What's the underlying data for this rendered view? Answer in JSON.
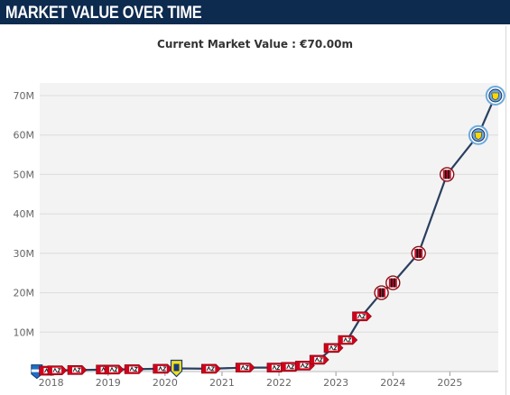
{
  "header": {
    "title": "MARKET VALUE OVER TIME"
  },
  "chart_data": {
    "type": "line",
    "title": "",
    "subtitle": "Current Market Value : €70.00m",
    "xlabel": "",
    "ylabel": "",
    "x_unit": "year",
    "y_unit": "€m",
    "xlim": [
      2017.8,
      2025.85
    ],
    "ylim": [
      0,
      70
    ],
    "x_ticks": [
      2018,
      2019,
      2020,
      2021,
      2022,
      2023,
      2024,
      2025
    ],
    "x_tick_labels": [
      "2018",
      "2019",
      "2020",
      "2021",
      "2022",
      "2023",
      "2024",
      "2025"
    ],
    "y_ticks": [
      10,
      20,
      30,
      40,
      50,
      60,
      70
    ],
    "y_tick_labels": [
      "10M",
      "20M",
      "30M",
      "40M",
      "50M",
      "60M",
      "70M"
    ],
    "grid": true,
    "legend": "none",
    "colors": {
      "line": "#2a3f5f",
      "plot_bg": "#f3f3f3",
      "grid": "#dcdcdc",
      "header_bg": "#0d2a4f"
    },
    "series": [
      {
        "values_unit": "€m",
        "points": [
          {
            "x": 2017.75,
            "y": 0.1,
            "club": "pec-zwolle"
          },
          {
            "x": 2017.95,
            "y": 0.2,
            "club": "az-alkmaar"
          },
          {
            "x": 2018.1,
            "y": 0.3,
            "club": "az-alkmaar"
          },
          {
            "x": 2018.45,
            "y": 0.4,
            "club": "az-alkmaar"
          },
          {
            "x": 2018.95,
            "y": 0.5,
            "club": "az-alkmaar"
          },
          {
            "x": 2019.1,
            "y": 0.5,
            "club": "az-alkmaar"
          },
          {
            "x": 2019.45,
            "y": 0.6,
            "club": "az-alkmaar"
          },
          {
            "x": 2019.95,
            "y": 0.7,
            "club": "az-alkmaar"
          },
          {
            "x": 2020.2,
            "y": 0.8,
            "club": "rkc-waalwijk"
          },
          {
            "x": 2020.8,
            "y": 0.7,
            "club": "az-alkmaar"
          },
          {
            "x": 2021.4,
            "y": 1.0,
            "club": "az-alkmaar"
          },
          {
            "x": 2021.95,
            "y": 1.0,
            "club": "az-alkmaar"
          },
          {
            "x": 2022.2,
            "y": 1.2,
            "club": "az-alkmaar"
          },
          {
            "x": 2022.45,
            "y": 1.5,
            "club": "az-alkmaar"
          },
          {
            "x": 2022.7,
            "y": 3.0,
            "club": "az-alkmaar"
          },
          {
            "x": 2022.95,
            "y": 6.0,
            "club": "az-alkmaar"
          },
          {
            "x": 2023.2,
            "y": 8.0,
            "club": "az-alkmaar"
          },
          {
            "x": 2023.45,
            "y": 14.0,
            "club": "az-alkmaar"
          },
          {
            "x": 2023.8,
            "y": 20.0,
            "club": "ac-milan"
          },
          {
            "x": 2024.0,
            "y": 22.5,
            "club": "ac-milan"
          },
          {
            "x": 2024.45,
            "y": 30.0,
            "club": "ac-milan"
          },
          {
            "x": 2024.95,
            "y": 50.0,
            "club": "ac-milan"
          },
          {
            "x": 2025.5,
            "y": 60.0,
            "club": "manchester-city"
          },
          {
            "x": 2025.8,
            "y": 70.0,
            "club": "manchester-city"
          }
        ]
      }
    ]
  }
}
